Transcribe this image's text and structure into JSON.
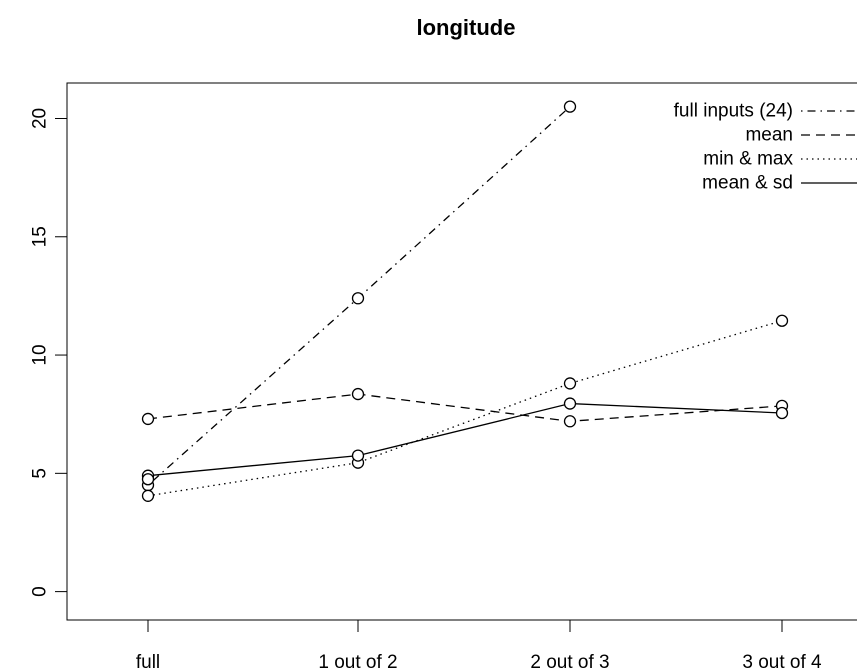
{
  "chart_data": {
    "type": "line",
    "title": "longitude",
    "xlabel": "",
    "ylabel": "",
    "categories": [
      "full",
      "1 out of 2",
      "2 out of 3",
      "3 out of 4"
    ],
    "ylim": [
      -1.2,
      21.5
    ],
    "yticks": [
      0,
      5,
      10,
      15,
      20
    ],
    "grid": false,
    "legend_position": "top-right",
    "series": [
      {
        "name": "full inputs (24)",
        "linestyle": "dotdash",
        "values": [
          4.5,
          12.4,
          20.5,
          null
        ]
      },
      {
        "name": "mean",
        "linestyle": "dashed",
        "values": [
          7.3,
          8.35,
          7.2,
          7.85
        ]
      },
      {
        "name": "min & max",
        "linestyle": "dotted",
        "values": [
          4.05,
          5.45,
          8.8,
          11.45
        ]
      },
      {
        "name": "mean & sd",
        "linestyle": "solid",
        "values": [
          4.9,
          5.75,
          7.95,
          7.55
        ]
      }
    ],
    "extra_points": [
      {
        "category": "full",
        "value": 4.75
      }
    ]
  }
}
